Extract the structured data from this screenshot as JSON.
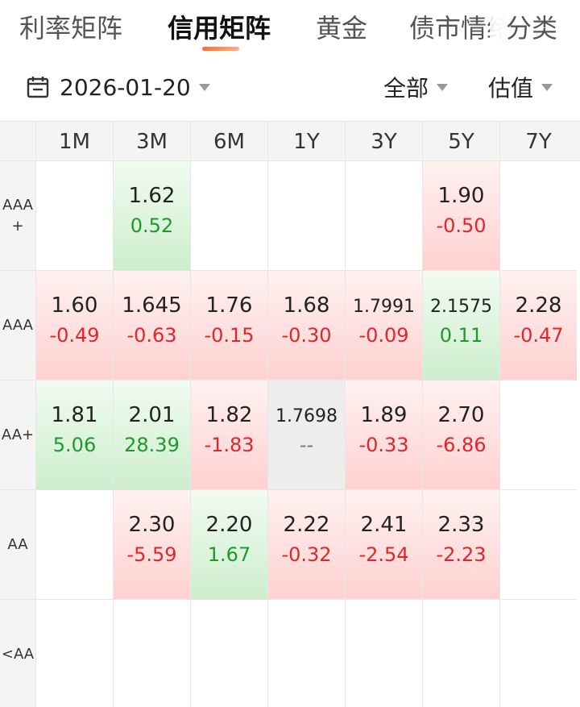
{
  "tabs": [
    {
      "label": "利率矩阵",
      "active": false
    },
    {
      "label": "信用矩阵",
      "active": true
    },
    {
      "label": "黄金",
      "active": false
    },
    {
      "label": "债市情绪",
      "active": false
    }
  ],
  "tab_more_label": "分类",
  "toolbar": {
    "date": "2026-01-20",
    "filter_label": "全部",
    "metric_label": "估值"
  },
  "columns": [
    "1M",
    "3M",
    "6M",
    "1Y",
    "3Y",
    "5Y",
    "7Y"
  ],
  "rows": [
    {
      "label": "AAA+",
      "cells": [
        null,
        {
          "value": "1.62",
          "change": "0.52",
          "tone": "green"
        },
        null,
        null,
        null,
        {
          "value": "1.90",
          "change": "-0.50",
          "tone": "red"
        },
        null
      ]
    },
    {
      "label": "AAA",
      "cells": [
        {
          "value": "1.60",
          "change": "-0.49",
          "tone": "red"
        },
        {
          "value": "1.645",
          "change": "-0.63",
          "tone": "red"
        },
        {
          "value": "1.76",
          "change": "-0.15",
          "tone": "red"
        },
        {
          "value": "1.68",
          "change": "-0.30",
          "tone": "red"
        },
        {
          "value": "1.7991",
          "change": "-0.09",
          "tone": "red"
        },
        {
          "value": "2.1575",
          "change": "0.11",
          "tone": "green"
        },
        {
          "value": "2.28",
          "change": "-0.47",
          "tone": "red"
        }
      ]
    },
    {
      "label": "AA+",
      "cells": [
        {
          "value": "1.81",
          "change": "5.06",
          "tone": "green"
        },
        {
          "value": "2.01",
          "change": "28.39",
          "tone": "green"
        },
        {
          "value": "1.82",
          "change": "-1.83",
          "tone": "red"
        },
        {
          "value": "1.7698",
          "change": "--",
          "tone": "gray"
        },
        {
          "value": "1.89",
          "change": "-0.33",
          "tone": "red"
        },
        {
          "value": "2.70",
          "change": "-6.86",
          "tone": "red"
        },
        null
      ]
    },
    {
      "label": "AA",
      "cells": [
        null,
        {
          "value": "2.30",
          "change": "-5.59",
          "tone": "red"
        },
        {
          "value": "2.20",
          "change": "1.67",
          "tone": "green"
        },
        {
          "value": "2.22",
          "change": "-0.32",
          "tone": "red"
        },
        {
          "value": "2.41",
          "change": "-2.54",
          "tone": "red"
        },
        {
          "value": "2.33",
          "change": "-2.23",
          "tone": "red"
        },
        null
      ]
    },
    {
      "label": "<AA",
      "cells": [
        null,
        null,
        null,
        null,
        null,
        null,
        null
      ]
    }
  ],
  "colors": {
    "accent": "#ff6a2a",
    "up": "#e0262c",
    "down": "#1e9a2a"
  }
}
